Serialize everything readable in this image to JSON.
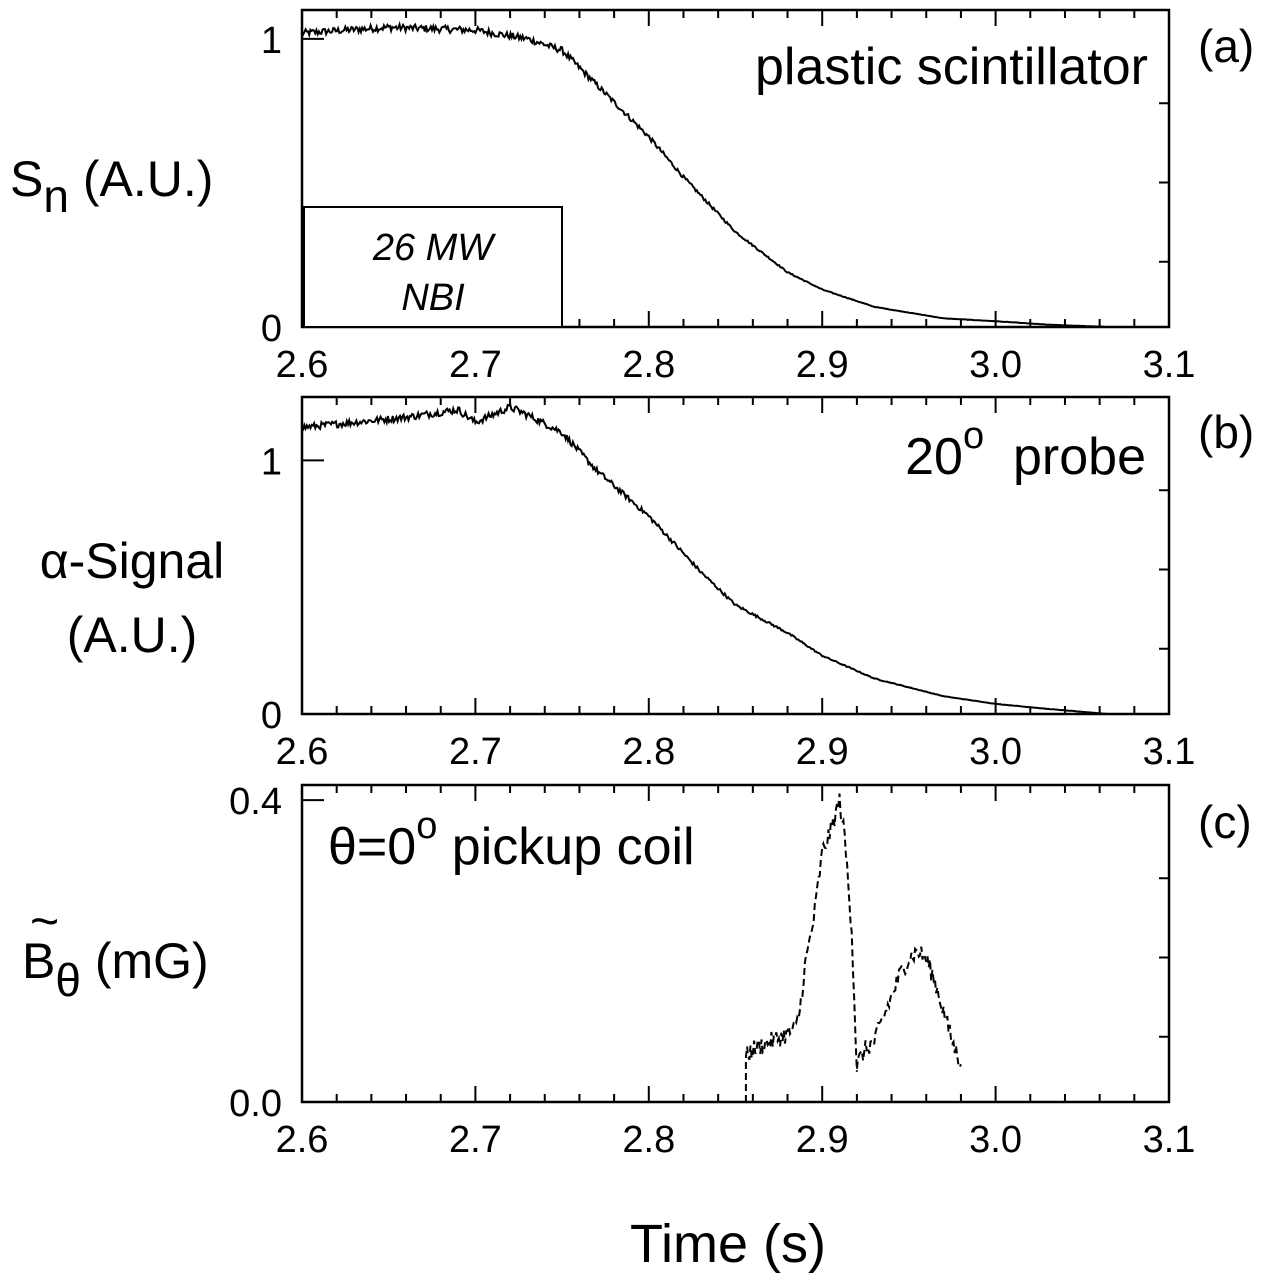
{
  "chart_data": [
    {
      "type": "line",
      "panel": "(a)",
      "annotation": "plastic scintillator",
      "inset_box": [
        "26 MW",
        "NBI"
      ],
      "ylabel": {
        "main": "S",
        "sub": "n",
        "rest": " (A.U.)"
      },
      "xlim": [
        2.6,
        3.1
      ],
      "ylim": [
        0,
        1.1
      ],
      "x_ticks": [
        "2.6",
        "2.7",
        "2.8",
        "2.9",
        "3.0",
        "3.1"
      ],
      "y_ticks": [
        {
          "v": 0,
          "label": "0"
        },
        {
          "v": 1,
          "label": "1"
        }
      ],
      "series": [
        {
          "x": [
            2.6,
            2.65,
            2.7,
            2.73,
            2.75,
            2.77,
            2.8,
            2.82,
            2.85,
            2.88,
            2.9,
            2.93,
            2.97,
            3.0,
            3.03,
            3.065
          ],
          "y": [
            1.02,
            1.04,
            1.03,
            1.0,
            0.96,
            0.84,
            0.66,
            0.52,
            0.33,
            0.19,
            0.13,
            0.07,
            0.03,
            0.02,
            0.008,
            0.0
          ]
        }
      ]
    },
    {
      "type": "line",
      "panel": "(b)",
      "annotation": {
        "main": "20",
        "sup": "o",
        "rest": "  probe"
      },
      "ylabel": [
        "α-Signal",
        "(A.U.)"
      ],
      "xlim": [
        2.6,
        3.1
      ],
      "ylim": [
        0,
        1.25
      ],
      "x_ticks": [
        "2.6",
        "2.7",
        "2.8",
        "2.9",
        "3.0",
        "3.1"
      ],
      "y_ticks": [
        {
          "v": 0,
          "label": "0"
        },
        {
          "v": 1,
          "label": "1"
        }
      ],
      "series": [
        {
          "x": [
            2.6,
            2.63,
            2.66,
            2.69,
            2.7,
            2.72,
            2.73,
            2.75,
            2.77,
            2.8,
            2.83,
            2.85,
            2.88,
            2.9,
            2.93,
            2.97,
            3.0,
            3.03,
            3.065
          ],
          "y": [
            1.13,
            1.15,
            1.17,
            1.2,
            1.15,
            1.21,
            1.18,
            1.11,
            0.96,
            0.78,
            0.56,
            0.43,
            0.32,
            0.23,
            0.14,
            0.07,
            0.04,
            0.02,
            0.0
          ]
        }
      ]
    },
    {
      "type": "line",
      "panel": "(c)",
      "annotation": {
        "main": "θ=0",
        "sup": "o",
        "rest": " pickup coil"
      },
      "ylabel": {
        "main": "B",
        "sub": "θ",
        "rest": " (mG)",
        "accent": "~"
      },
      "xlim": [
        2.6,
        3.1
      ],
      "ylim": [
        0,
        0.42
      ],
      "x_ticks": [
        "2.6",
        "2.7",
        "2.8",
        "2.9",
        "3.0",
        "3.1"
      ],
      "y_ticks": [
        {
          "v": 0,
          "label": "0.0"
        },
        {
          "v": 0.4,
          "label": "0.4"
        }
      ],
      "xlabel": "Time (s)",
      "series": [
        {
          "x": [
            2.856,
            2.856,
            2.86,
            2.865,
            2.87,
            2.875,
            2.88,
            2.885,
            2.887,
            2.89,
            2.895,
            2.9,
            2.905,
            2.91,
            2.913,
            2.917,
            2.92
          ],
          "y": [
            0.0,
            0.06,
            0.07,
            0.075,
            0.08,
            0.085,
            0.09,
            0.1,
            0.12,
            0.18,
            0.24,
            0.33,
            0.36,
            0.4,
            0.35,
            0.23,
            0.04
          ]
        },
        {
          "x": [
            2.92,
            2.925,
            2.93,
            2.935,
            2.94,
            2.945,
            2.95,
            2.955,
            2.96,
            2.965,
            2.97,
            2.975,
            2.98
          ],
          "y": [
            0.05,
            0.07,
            0.08,
            0.11,
            0.14,
            0.17,
            0.19,
            0.2,
            0.19,
            0.16,
            0.12,
            0.08,
            0.05
          ]
        }
      ]
    }
  ]
}
